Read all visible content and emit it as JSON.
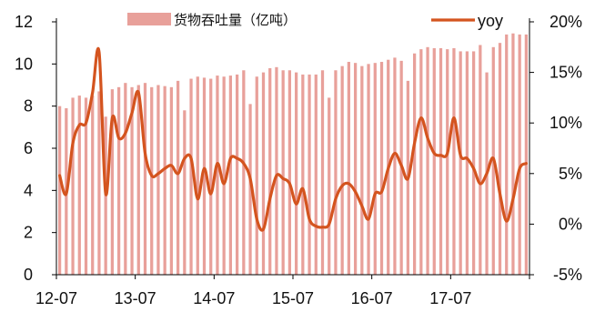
{
  "chart_data": {
    "type": "bar+line",
    "title": "",
    "xlabel": "",
    "ylabel_left": "",
    "ylabel_right": "",
    "x_tick_labels": [
      "12-07",
      "13-07",
      "14-07",
      "15-07",
      "16-07",
      "17-07"
    ],
    "y_left": {
      "ticks": [
        "0",
        "2",
        "4",
        "6",
        "8",
        "10",
        "12"
      ],
      "min": 0,
      "max": 12
    },
    "y_right": {
      "ticks": [
        "-5%",
        "0%",
        "5%",
        "10%",
        "15%",
        "20%"
      ],
      "min": -5,
      "max": 20
    },
    "legend": {
      "placement": "top",
      "bar_label": "货物吞吐量（亿吨）",
      "line_label": "yoy"
    },
    "grid": false,
    "colors": {
      "bar": "#E8A09A",
      "line": "#D4541F",
      "axis": "#000000"
    },
    "x": [
      "12-07",
      "12-08",
      "12-09",
      "12-10",
      "12-11",
      "12-12",
      "13-01",
      "13-02",
      "13-03",
      "13-04",
      "13-05",
      "13-06",
      "13-07",
      "13-08",
      "13-09",
      "13-10",
      "13-11",
      "13-12",
      "14-01",
      "14-02",
      "14-03",
      "14-04",
      "14-05",
      "14-06",
      "14-07",
      "14-08",
      "14-09",
      "14-10",
      "14-11",
      "14-12",
      "15-01",
      "15-02",
      "15-03",
      "15-04",
      "15-05",
      "15-06",
      "15-07",
      "15-08",
      "15-09",
      "15-10",
      "15-11",
      "15-12",
      "16-01",
      "16-02",
      "16-03",
      "16-04",
      "16-05",
      "16-06",
      "16-07",
      "16-08",
      "16-09",
      "16-10",
      "16-11",
      "16-12",
      "17-01",
      "17-02",
      "17-03",
      "17-04",
      "17-05",
      "17-06",
      "17-07",
      "17-08",
      "17-09",
      "17-10",
      "17-11",
      "17-12",
      "18-01",
      "18-02",
      "18-03",
      "18-04",
      "18-05",
      "18-06"
    ],
    "series": [
      {
        "name": "货物吞吐量（亿吨）",
        "type": "bar",
        "axis": "left",
        "values": [
          8.0,
          7.9,
          8.4,
          8.5,
          8.4,
          8.5,
          8.7,
          7.5,
          8.8,
          8.9,
          9.1,
          8.9,
          9.0,
          9.1,
          8.9,
          9.0,
          8.95,
          8.9,
          9.2,
          7.8,
          9.3,
          9.4,
          9.35,
          9.3,
          9.45,
          9.4,
          9.45,
          9.5,
          9.7,
          8.1,
          9.4,
          9.6,
          9.8,
          9.85,
          9.7,
          9.7,
          9.6,
          9.5,
          9.5,
          9.5,
          9.7,
          8.4,
          9.7,
          9.9,
          10.1,
          10.05,
          9.9,
          10.0,
          10.05,
          10.1,
          10.2,
          10.3,
          10.15,
          9.2,
          10.5,
          10.7,
          10.8,
          10.75,
          10.75,
          10.7,
          10.75,
          10.6,
          10.6,
          10.6,
          10.9,
          9.6,
          10.8,
          11.0,
          11.4,
          11.45,
          11.4,
          11.4
        ]
      },
      {
        "name": "yoy",
        "type": "line",
        "axis": "right",
        "values": [
          4.8,
          3.0,
          8.0,
          9.8,
          10.0,
          13.0,
          17.0,
          3.0,
          10.5,
          8.5,
          9.0,
          11.0,
          13.0,
          7.0,
          4.8,
          5.0,
          5.5,
          5.8,
          5.0,
          6.5,
          6.5,
          2.5,
          5.5,
          3.0,
          6.0,
          4.0,
          6.5,
          6.5,
          6.0,
          4.5,
          0.5,
          -0.5,
          2.5,
          4.8,
          4.5,
          4.0,
          2.0,
          3.5,
          0.5,
          -0.2,
          -0.3,
          0.0,
          2.5,
          3.8,
          4.0,
          3.2,
          1.8,
          0.5,
          3.0,
          3.2,
          5.5,
          7.0,
          5.8,
          4.5,
          8.0,
          10.5,
          8.5,
          7.0,
          6.8,
          7.0,
          10.5,
          6.8,
          6.5,
          5.5,
          4.0,
          5.0,
          6.5,
          3.0,
          0.3,
          2.5,
          5.5,
          6.0
        ]
      }
    ]
  }
}
